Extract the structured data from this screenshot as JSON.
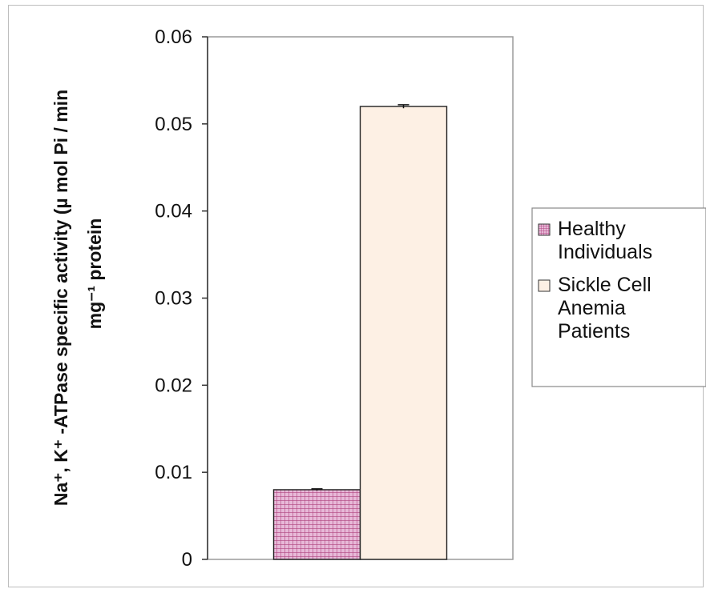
{
  "chart_data": {
    "type": "bar",
    "categories": [
      ""
    ],
    "series": [
      {
        "name": "Healthy Individuals",
        "values": [
          0.008
        ],
        "error": [
          0.0001
        ],
        "color": "#d9a0c8",
        "pattern": "grid"
      },
      {
        "name": "Sickle Cell Anemia Patients",
        "values": [
          0.052
        ],
        "error": [
          0.0002
        ],
        "color": "#fdf0e4",
        "pattern": "solid"
      }
    ],
    "yticks": [
      "0",
      "0.01",
      "0.02",
      "0.03",
      "0.04",
      "0.05",
      "0.06"
    ],
    "ylim": [
      0,
      0.06
    ],
    "ylabel_line1": "Na⁺, K⁺ -ATPase specific activity  (µ mol Pi / min",
    "ylabel_line2": "mg⁻¹ protein",
    "xlabel": "",
    "title": "",
    "grid": false,
    "legend": {
      "position": "right",
      "items": [
        {
          "lines": [
            "Healthy",
            "Individuals"
          ],
          "pattern": "grid",
          "color": "#d9a0c8"
        },
        {
          "lines": [
            "Sickle Cell",
            "Anemia",
            "Patients"
          ],
          "pattern": "solid",
          "color": "#fdf0e4"
        }
      ]
    }
  }
}
